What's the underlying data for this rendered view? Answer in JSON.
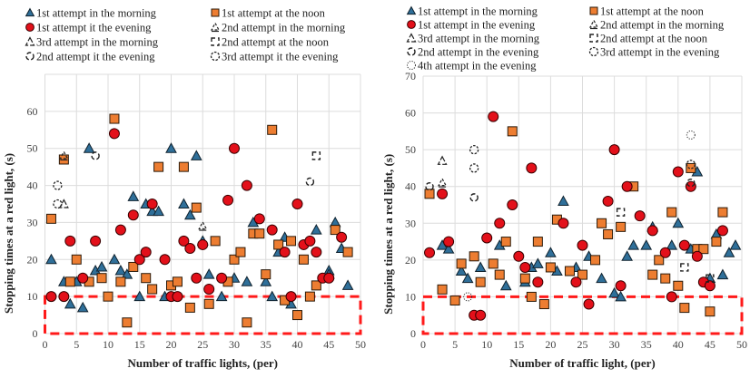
{
  "colors": {
    "morning": "#2f6f99",
    "noon": "#ed7d31",
    "evening": "#e3101a",
    "highlight": "#ff1a1a",
    "grid": "#dcdcdc"
  },
  "chart_data": [
    {
      "type": "scatter",
      "xlabel": "Number of traffic lights, (per)",
      "ylabel": "Stopping times at a red light, (s)",
      "xlim": [
        0,
        50
      ],
      "ylim": [
        0,
        70
      ],
      "xticks": [
        0,
        5,
        10,
        15,
        20,
        25,
        30,
        35,
        40,
        45,
        50
      ],
      "yticks": [
        0,
        10,
        20,
        30,
        40,
        50,
        60
      ],
      "grid": true,
      "legend_position": "top",
      "highlight_region": {
        "x": [
          0,
          50
        ],
        "y": [
          0,
          10
        ]
      },
      "series": [
        {
          "name": "1st attempt in the morning",
          "marker": "triangle",
          "points": [
            [
              1,
              20
            ],
            [
              3,
              14
            ],
            [
              4,
              8
            ],
            [
              5,
              14
            ],
            [
              6,
              7
            ],
            [
              7,
              50
            ],
            [
              8,
              17
            ],
            [
              9,
              18
            ],
            [
              11,
              20
            ],
            [
              12,
              17
            ],
            [
              13,
              16
            ],
            [
              14,
              37
            ],
            [
              15,
              10
            ],
            [
              16,
              35
            ],
            [
              17,
              33
            ],
            [
              18,
              33
            ],
            [
              19,
              10
            ],
            [
              20,
              50
            ],
            [
              22,
              35
            ],
            [
              23,
              32
            ],
            [
              24,
              48
            ],
            [
              25,
              25
            ],
            [
              26,
              16
            ],
            [
              28,
              10
            ],
            [
              30,
              15
            ],
            [
              32,
              14
            ],
            [
              33,
              30
            ],
            [
              35,
              14
            ],
            [
              36,
              10
            ],
            [
              37,
              22
            ],
            [
              38,
              26
            ],
            [
              39,
              8
            ],
            [
              43,
              28
            ],
            [
              45,
              17
            ],
            [
              45,
              16
            ],
            [
              46,
              30
            ],
            [
              47,
              23
            ],
            [
              48,
              13
            ]
          ]
        },
        {
          "name": "1st attempt at the noon",
          "marker": "square",
          "points": [
            [
              1,
              31
            ],
            [
              3,
              47
            ],
            [
              4,
              14
            ],
            [
              5,
              20
            ],
            [
              7,
              14
            ],
            [
              9,
              15
            ],
            [
              10,
              10
            ],
            [
              11,
              58
            ],
            [
              12,
              14
            ],
            [
              13,
              3
            ],
            [
              14,
              18
            ],
            [
              16,
              15
            ],
            [
              17,
              12
            ],
            [
              18,
              45
            ],
            [
              20,
              13
            ],
            [
              21,
              14
            ],
            [
              22,
              45
            ],
            [
              23,
              7
            ],
            [
              24,
              34
            ],
            [
              26,
              8
            ],
            [
              27,
              25
            ],
            [
              29,
              14
            ],
            [
              30,
              20
            ],
            [
              31,
              22
            ],
            [
              32,
              3
            ],
            [
              33,
              27
            ],
            [
              34,
              27
            ],
            [
              35,
              16
            ],
            [
              36,
              55
            ],
            [
              37,
              24
            ],
            [
              38,
              9
            ],
            [
              39,
              25
            ],
            [
              40,
              5
            ],
            [
              41,
              20
            ],
            [
              42,
              10
            ],
            [
              43,
              13
            ],
            [
              46,
              28
            ],
            [
              48,
              22
            ]
          ]
        },
        {
          "name": "1st attempt it the evening",
          "marker": "circle",
          "points": [
            [
              1,
              10
            ],
            [
              3,
              10
            ],
            [
              4,
              25
            ],
            [
              6,
              15
            ],
            [
              8,
              25
            ],
            [
              11,
              54
            ],
            [
              12,
              28
            ],
            [
              14,
              32
            ],
            [
              15,
              20
            ],
            [
              16,
              22
            ],
            [
              17,
              35
            ],
            [
              19,
              20
            ],
            [
              20,
              10
            ],
            [
              21,
              10
            ],
            [
              22,
              25
            ],
            [
              23,
              23
            ],
            [
              24,
              15
            ],
            [
              25,
              24
            ],
            [
              26,
              12
            ],
            [
              28,
              15
            ],
            [
              29,
              36
            ],
            [
              30,
              50
            ],
            [
              32,
              40
            ],
            [
              34,
              31
            ],
            [
              36,
              28
            ],
            [
              38,
              22
            ],
            [
              39,
              10
            ],
            [
              40,
              35
            ],
            [
              41,
              24
            ],
            [
              42,
              25
            ],
            [
              43,
              22
            ],
            [
              44,
              15
            ],
            [
              45,
              15
            ],
            [
              47,
              26
            ]
          ]
        },
        {
          "name": "2nd attempt in the morning",
          "marker": "triangle-dashed",
          "points": [
            [
              3,
              48
            ],
            [
              25,
              29
            ]
          ]
        },
        {
          "name": "3rd attempt in the morning",
          "marker": "triangle-open",
          "points": [
            [
              3,
              35
            ]
          ]
        },
        {
          "name": "2nd attempt at the noon",
          "marker": "square-dashed",
          "points": [
            [
              43,
              48
            ]
          ]
        },
        {
          "name": "2nd attempt it the evening",
          "marker": "circle-dashed",
          "points": [
            [
              8,
              48
            ],
            [
              42,
              41
            ]
          ]
        },
        {
          "name": "3rd attempt it the evening",
          "marker": "circle-dotted",
          "points": [
            [
              2,
              40
            ],
            [
              2,
              35
            ]
          ]
        }
      ]
    },
    {
      "type": "scatter",
      "xlabel": "Number of traffic light, (per)",
      "ylabel": "Stopping times at a red light, (s)",
      "xlim": [
        0,
        50
      ],
      "ylim": [
        0,
        70
      ],
      "xticks": [
        0,
        5,
        10,
        15,
        20,
        25,
        30,
        35,
        40,
        45,
        50
      ],
      "yticks": [
        0,
        10,
        20,
        30,
        40,
        50,
        60,
        70
      ],
      "grid": true,
      "legend_position": "top",
      "highlight_region": {
        "x": [
          0,
          50
        ],
        "y": [
          0,
          10
        ]
      },
      "series": [
        {
          "name": "1st attempt in the morning",
          "marker": "triangle",
          "points": [
            [
              3,
              24
            ],
            [
              4,
              23
            ],
            [
              6,
              17
            ],
            [
              7,
              15
            ],
            [
              9,
              18
            ],
            [
              12,
              24
            ],
            [
              13,
              13
            ],
            [
              16,
              14
            ],
            [
              17,
              18
            ],
            [
              18,
              19
            ],
            [
              20,
              22
            ],
            [
              21,
              17
            ],
            [
              22,
              36
            ],
            [
              24,
              18
            ],
            [
              26,
              21
            ],
            [
              28,
              15
            ],
            [
              30,
              11
            ],
            [
              31,
              10
            ],
            [
              32,
              21
            ],
            [
              33,
              24
            ],
            [
              35,
              24
            ],
            [
              36,
              29
            ],
            [
              39,
              24
            ],
            [
              40,
              30
            ],
            [
              42,
              23
            ],
            [
              43,
              44
            ],
            [
              45,
              15
            ],
            [
              46,
              27
            ],
            [
              47,
              16
            ],
            [
              48,
              22
            ],
            [
              49,
              24
            ]
          ]
        },
        {
          "name": "1st attempt at the noon",
          "marker": "square",
          "points": [
            [
              1,
              38
            ],
            [
              3,
              12
            ],
            [
              5,
              9
            ],
            [
              6,
              19
            ],
            [
              8,
              21
            ],
            [
              9,
              14
            ],
            [
              11,
              19
            ],
            [
              12,
              16
            ],
            [
              13,
              25
            ],
            [
              14,
              55
            ],
            [
              16,
              15
            ],
            [
              17,
              10
            ],
            [
              18,
              25
            ],
            [
              19,
              8
            ],
            [
              20,
              18
            ],
            [
              21,
              31
            ],
            [
              23,
              17
            ],
            [
              25,
              16
            ],
            [
              27,
              20
            ],
            [
              28,
              30
            ],
            [
              29,
              27
            ],
            [
              31,
              29
            ],
            [
              33,
              40
            ],
            [
              36,
              16
            ],
            [
              37,
              20
            ],
            [
              38,
              15
            ],
            [
              39,
              33
            ],
            [
              40,
              13
            ],
            [
              41,
              7
            ],
            [
              42,
              45
            ],
            [
              43,
              23
            ],
            [
              44,
              23
            ],
            [
              45,
              6
            ],
            [
              46,
              25
            ],
            [
              47,
              33
            ]
          ]
        },
        {
          "name": "1st attempt in the evening",
          "marker": "circle",
          "points": [
            [
              1,
              22
            ],
            [
              3,
              38
            ],
            [
              4,
              25
            ],
            [
              8,
              5
            ],
            [
              9,
              5
            ],
            [
              10,
              26
            ],
            [
              11,
              59
            ],
            [
              12,
              30
            ],
            [
              14,
              35
            ],
            [
              15,
              21
            ],
            [
              16,
              18
            ],
            [
              17,
              45
            ],
            [
              18,
              14
            ],
            [
              22,
              30
            ],
            [
              24,
              14
            ],
            [
              25,
              24
            ],
            [
              26,
              8
            ],
            [
              29,
              36
            ],
            [
              30,
              50
            ],
            [
              31,
              13
            ],
            [
              32,
              40
            ],
            [
              34,
              32
            ],
            [
              36,
              28
            ],
            [
              38,
              22
            ],
            [
              39,
              10
            ],
            [
              40,
              44
            ],
            [
              41,
              24
            ],
            [
              42,
              40
            ],
            [
              43,
              21
            ],
            [
              44,
              14
            ],
            [
              45,
              13
            ],
            [
              47,
              28
            ]
          ]
        },
        {
          "name": "2nd attempt in the morning",
          "marker": "triangle-dashed",
          "points": [
            [
              3,
              41
            ]
          ]
        },
        {
          "name": "3rd attempt in the morning",
          "marker": "triangle-open",
          "points": [
            [
              3,
              47
            ]
          ]
        },
        {
          "name": "2nd attempt at the noon",
          "marker": "square-dashed",
          "points": [
            [
              31,
              33
            ],
            [
              41,
              18
            ],
            [
              45,
              15
            ]
          ]
        },
        {
          "name": "2nd attempt in the evening",
          "marker": "circle-dashed",
          "points": [
            [
              1,
              40
            ],
            [
              8,
              37
            ],
            [
              42,
              41
            ]
          ]
        },
        {
          "name": "3rd attempt in the evening",
          "marker": "circle-dotted",
          "points": [
            [
              8,
              50
            ],
            [
              8,
              45
            ],
            [
              42,
              46
            ]
          ]
        },
        {
          "name": "4th attempt in the evening",
          "marker": "circle-dotted4",
          "points": [
            [
              7,
              10
            ],
            [
              42,
              54
            ]
          ]
        }
      ]
    }
  ]
}
